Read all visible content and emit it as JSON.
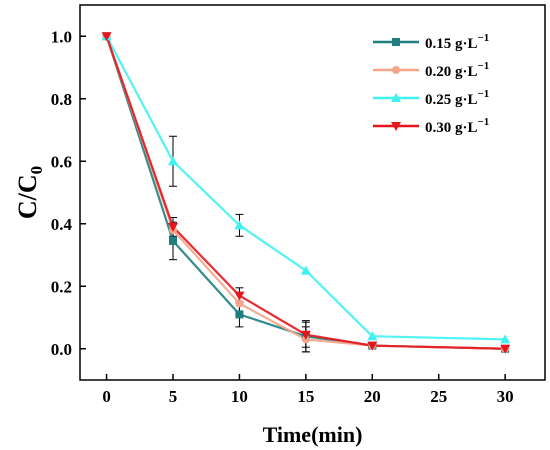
{
  "chart_data": {
    "type": "line",
    "xlabel": "Time(min)",
    "ylabel": "C/C",
    "ylabel_subscript": "0",
    "xlim": [
      -2,
      33
    ],
    "ylim": [
      -0.1,
      1.1
    ],
    "xticks": [
      0,
      5,
      10,
      15,
      20,
      25,
      30
    ],
    "yticks": [
      0.0,
      0.2,
      0.4,
      0.6,
      0.8,
      1.0
    ],
    "ytick_labels": [
      "0.0",
      "0.2",
      "0.4",
      "0.6",
      "0.8",
      "1.0"
    ],
    "legend_position": "top-right",
    "series": [
      {
        "name": "0.15 g·L",
        "name_superscript": "−1",
        "color": "#1f7f7f",
        "marker": "square",
        "x": [
          0,
          5,
          10,
          15,
          20,
          30
        ],
        "y": [
          1.0,
          0.345,
          0.11,
          0.04,
          0.01,
          0.0
        ],
        "err": [
          0,
          0.06,
          0.04,
          0.05,
          0.005,
          0
        ]
      },
      {
        "name": "0.20 g·L",
        "name_superscript": "−1",
        "color": "#f4a58a",
        "marker": "circle",
        "x": [
          0,
          5,
          10,
          15,
          20,
          30
        ],
        "y": [
          1.0,
          0.38,
          0.145,
          0.03,
          0.01,
          0.0
        ],
        "err": [
          0,
          0.04,
          0.035,
          0.04,
          0.005,
          0
        ]
      },
      {
        "name": "0.25 g·L",
        "name_superscript": "−1",
        "color": "#3ff2f2",
        "marker": "triangle-up",
        "x": [
          0,
          5,
          10,
          15,
          20,
          30
        ],
        "y": [
          1.0,
          0.6,
          0.395,
          0.25,
          0.04,
          0.03
        ],
        "err": [
          0,
          0.08,
          0.035,
          0,
          0,
          0
        ]
      },
      {
        "name": "0.30 g·L",
        "name_superscript": "−1",
        "color": "#e8141c",
        "marker": "triangle-down",
        "x": [
          0,
          5,
          10,
          15,
          20,
          30
        ],
        "y": [
          1.0,
          0.39,
          0.17,
          0.045,
          0.01,
          0.0
        ],
        "err": [
          0,
          0.03,
          0.025,
          0.04,
          0.005,
          0
        ]
      }
    ]
  }
}
